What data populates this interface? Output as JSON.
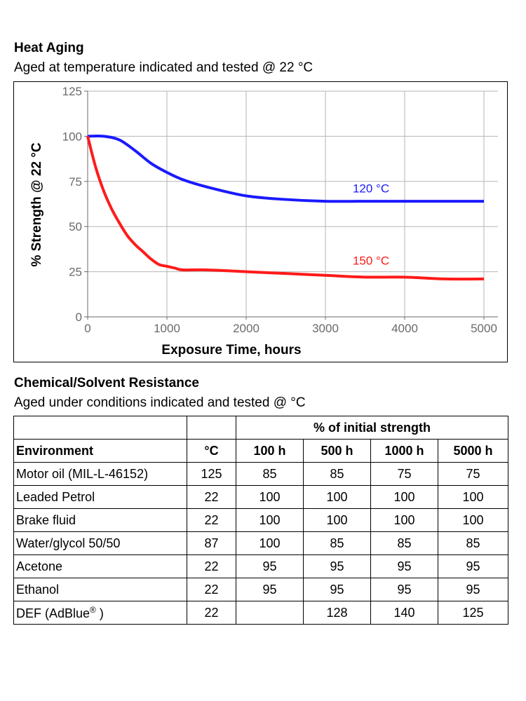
{
  "heat_aging": {
    "title": "Heat Aging",
    "subtitle": "Aged at temperature indicated and tested @ 22 °C"
  },
  "chart_data": {
    "type": "line",
    "title": "Heat Aging",
    "subtitle": "Aged at temperature indicated and tested @ 22 °C",
    "xlabel": "Exposure Time, hours",
    "ylabel": "% Strength @ 22 °C",
    "xlim": [
      0,
      5000
    ],
    "ylim": [
      0,
      125
    ],
    "x_ticks": [
      0,
      1000,
      2000,
      3000,
      4000,
      5000
    ],
    "y_ticks": [
      0,
      25,
      50,
      75,
      100,
      125
    ],
    "grid": true,
    "series": [
      {
        "name": "120 °C",
        "color": "#1a1aff",
        "x": [
          0,
          200,
          400,
          600,
          800,
          1000,
          1200,
          1500,
          2000,
          2500,
          3000,
          3500,
          4000,
          4500,
          5000
        ],
        "y": [
          100,
          100,
          98,
          92,
          85,
          80,
          76,
          72,
          67,
          65,
          64,
          64,
          64,
          64,
          64
        ]
      },
      {
        "name": "150 °C",
        "color": "#ff1a1a",
        "x": [
          0,
          100,
          200,
          300,
          400,
          500,
          600,
          700,
          800,
          900,
          1000,
          1100,
          1200,
          1500,
          2000,
          2500,
          3000,
          3500,
          4000,
          4500,
          5000
        ],
        "y": [
          100,
          83,
          70,
          60,
          52,
          45,
          40,
          36,
          32,
          29,
          28,
          27,
          26,
          26,
          25,
          24,
          23,
          22,
          22,
          21,
          21
        ]
      }
    ]
  },
  "chemical": {
    "title": "Chemical/Solvent Resistance",
    "subtitle": "Aged under conditions indicated and tested @ °C",
    "group_header": "% of initial strength",
    "columns": [
      "Environment",
      "°C",
      "100 h",
      "500 h",
      "1000 h",
      "5000 h"
    ],
    "rows": [
      [
        "Motor oil (MIL-L-46152)",
        "125",
        "85",
        "85",
        "75",
        "75"
      ],
      [
        "Leaded Petrol",
        "22",
        "100",
        "100",
        "100",
        "100"
      ],
      [
        "Brake fluid",
        "22",
        "100",
        "100",
        "100",
        "100"
      ],
      [
        "Water/glycol 50/50",
        "87",
        "100",
        "85",
        "85",
        "85"
      ],
      [
        "Acetone",
        "22",
        "95",
        "95",
        "95",
        "95"
      ],
      [
        "Ethanol",
        "22",
        "95",
        "95",
        "95",
        "95"
      ],
      [
        "DEF (AdBlue",
        "22",
        "",
        "128",
        "140",
        "125"
      ]
    ],
    "registered_mark": "®",
    "closing_paren": " )"
  }
}
